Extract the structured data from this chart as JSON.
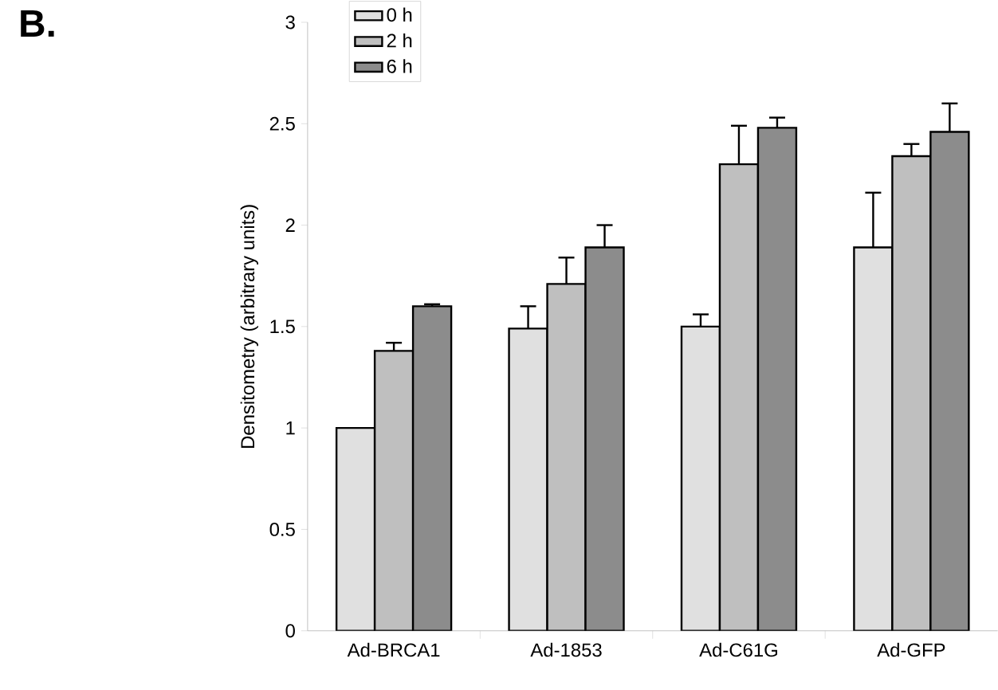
{
  "chart_data": {
    "type": "bar",
    "annotations": [
      "B."
    ],
    "ylabel": "Densitometry (arbitrary units)",
    "categories": [
      "Ad-BRCA1",
      "Ad-1853",
      "Ad-C61G",
      "Ad-GFP"
    ],
    "series": [
      {
        "name": "0 h",
        "color": "#e0e0e0",
        "values": [
          1.0,
          1.49,
          1.5,
          1.89
        ],
        "errors": [
          null,
          0.11,
          0.06,
          0.27
        ]
      },
      {
        "name": "2 h",
        "color": "#bfbfbf",
        "values": [
          1.38,
          1.71,
          2.3,
          2.34
        ],
        "errors": [
          0.04,
          0.13,
          0.19,
          0.06
        ]
      },
      {
        "name": "6 h",
        "color": "#8c8c8c",
        "values": [
          1.6,
          1.89,
          2.48,
          2.46
        ],
        "errors": [
          0.01,
          0.11,
          0.05,
          0.14
        ]
      }
    ],
    "ylim": [
      0,
      3
    ],
    "yticks": [
      0,
      0.5,
      1,
      1.5,
      2,
      2.5,
      3
    ],
    "legend": "top left",
    "grid": false
  }
}
